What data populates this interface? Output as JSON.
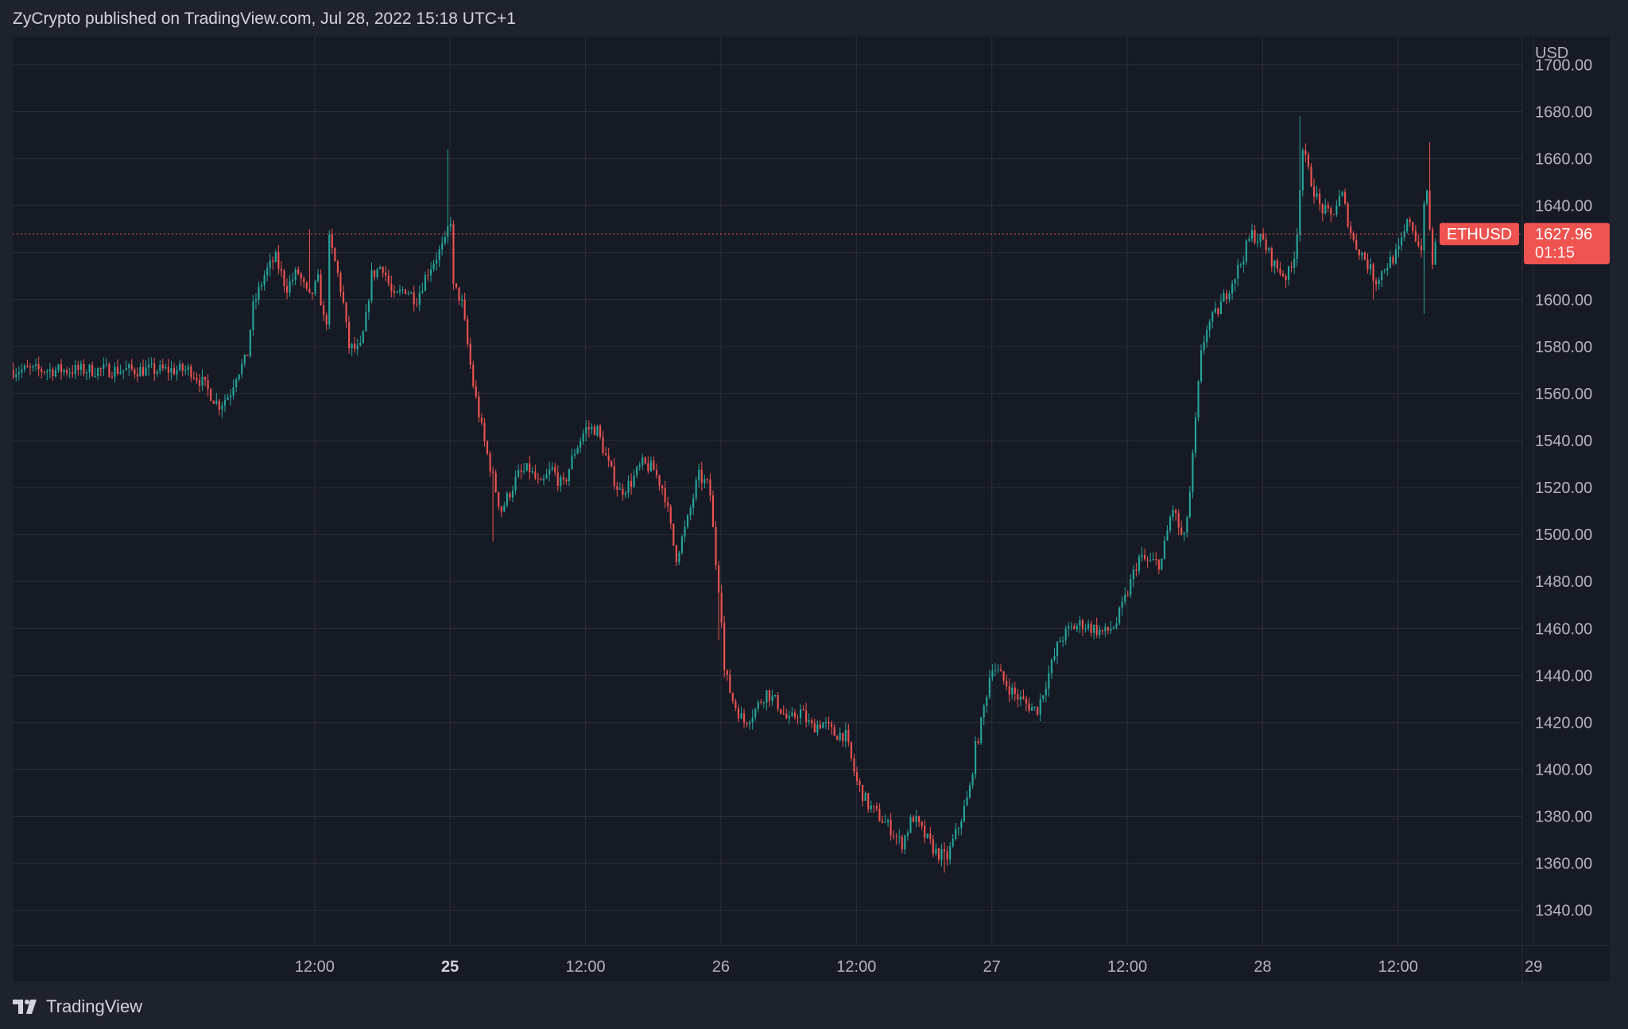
{
  "header": {
    "publisher_line": "ZyCrypto published on TradingView.com, Jul 28, 2022 15:18 UTC+1"
  },
  "footer": {
    "brand": "TradingView"
  },
  "colors": {
    "background": "#1e222d",
    "plot_background": "#161a25",
    "grid": "#2a2e39",
    "up": "#26a69a",
    "down": "#ef5350",
    "axis_text": "#b2b5be",
    "price_tag": "#ef5350"
  },
  "chart_data": {
    "type": "candlestick",
    "symbol": "ETHUSD",
    "currency_label": "USD",
    "last_price": "1627.96",
    "countdown": "01:15",
    "ylim": [
      1325,
      1712
    ],
    "y_ticks": [
      1340,
      1360,
      1380,
      1400,
      1420,
      1440,
      1460,
      1480,
      1500,
      1520,
      1540,
      1560,
      1580,
      1600,
      1620,
      1640,
      1660,
      1680,
      1700
    ],
    "y_tick_labels": [
      "1340.00",
      "1360.00",
      "1380.00",
      "1400.00",
      "1420.00",
      "1440.00",
      "1460.00",
      "1480.00",
      "1500.00",
      "1520.00",
      "1540.00",
      "1560.00",
      "1580.00",
      "1600.00",
      "1620.00",
      "1640.00",
      "1660.00",
      "1680.00",
      "1700.00"
    ],
    "x_range_hours": [
      -14.75,
      119
    ],
    "x_ticks": [
      {
        "hours": 12,
        "label": "12:00",
        "bold": false
      },
      {
        "hours": 24,
        "label": "25",
        "bold": true
      },
      {
        "hours": 36,
        "label": "12:00",
        "bold": false
      },
      {
        "hours": 48,
        "label": "26",
        "bold": false
      },
      {
        "hours": 60,
        "label": "12:00",
        "bold": false
      },
      {
        "hours": 72,
        "label": "27",
        "bold": false
      },
      {
        "hours": 84,
        "label": "12:00",
        "bold": false
      },
      {
        "hours": 96,
        "label": "28",
        "bold": false
      },
      {
        "hours": 108,
        "label": "12:00",
        "bold": false
      },
      {
        "hours": 120,
        "label": "29",
        "bold": false
      }
    ],
    "price_path": [
      [
        1.0,
        1570
      ],
      [
        2.0,
        1565
      ],
      [
        3.5,
        1555
      ],
      [
        4.5,
        1560
      ],
      [
        5.0,
        1568
      ],
      [
        6.0,
        1575
      ],
      [
        6.5,
        1596
      ],
      [
        7.5,
        1610
      ],
      [
        8.5,
        1618
      ],
      [
        9.5,
        1605
      ],
      [
        10.5,
        1612
      ],
      [
        11.5,
        1600
      ],
      [
        12.3,
        1608
      ],
      [
        13.0,
        1585
      ],
      [
        13.3,
        1625
      ],
      [
        14.0,
        1612
      ],
      [
        14.5,
        1600
      ],
      [
        15.0,
        1580
      ],
      [
        16.0,
        1578
      ],
      [
        16.5,
        1590
      ],
      [
        17.0,
        1610
      ],
      [
        18.0,
        1615
      ],
      [
        19.0,
        1600
      ],
      [
        20.0,
        1605
      ],
      [
        21.0,
        1600
      ],
      [
        22.0,
        1612
      ],
      [
        23.0,
        1620
      ],
      [
        23.7,
        1625
      ],
      [
        24.0,
        1640
      ],
      [
        24.3,
        1605
      ],
      [
        25.0,
        1600
      ],
      [
        26.0,
        1565
      ],
      [
        27.0,
        1540
      ],
      [
        28.0,
        1520
      ],
      [
        28.5,
        1510
      ],
      [
        29.0,
        1515
      ],
      [
        30.0,
        1525
      ],
      [
        31.0,
        1528
      ],
      [
        32.0,
        1520
      ],
      [
        33.0,
        1528
      ],
      [
        34.0,
        1520
      ],
      [
        35.0,
        1535
      ],
      [
        36.0,
        1545
      ],
      [
        37.0,
        1545
      ],
      [
        38.0,
        1530
      ],
      [
        39.0,
        1518
      ],
      [
        40.0,
        1522
      ],
      [
        41.0,
        1530
      ],
      [
        42.0,
        1528
      ],
      [
        43.0,
        1518
      ],
      [
        44.0,
        1490
      ],
      [
        45.0,
        1505
      ],
      [
        46.0,
        1525
      ],
      [
        47.0,
        1520
      ],
      [
        47.5,
        1490
      ],
      [
        48.0,
        1470
      ],
      [
        48.3,
        1442
      ],
      [
        49.0,
        1430
      ],
      [
        50.0,
        1420
      ],
      [
        51.0,
        1425
      ],
      [
        52.0,
        1433
      ],
      [
        53.0,
        1428
      ],
      [
        54.0,
        1420
      ],
      [
        55.0,
        1425
      ],
      [
        56.0,
        1418
      ],
      [
        57.0,
        1420
      ],
      [
        58.0,
        1415
      ],
      [
        59.0,
        1415
      ],
      [
        60.0,
        1395
      ],
      [
        61.0,
        1385
      ],
      [
        62.0,
        1380
      ],
      [
        63.0,
        1375
      ],
      [
        64.0,
        1368
      ],
      [
        65.0,
        1380
      ],
      [
        66.0,
        1372
      ],
      [
        67.0,
        1365
      ],
      [
        68.0,
        1362
      ],
      [
        69.0,
        1375
      ],
      [
        70.0,
        1390
      ],
      [
        70.5,
        1408
      ],
      [
        71.0,
        1418
      ],
      [
        72.0,
        1445
      ],
      [
        73.0,
        1438
      ],
      [
        74.0,
        1432
      ],
      [
        75.0,
        1428
      ],
      [
        76.0,
        1425
      ],
      [
        77.0,
        1440
      ],
      [
        78.0,
        1455
      ],
      [
        79.0,
        1460
      ],
      [
        80.0,
        1462
      ],
      [
        81.0,
        1460
      ],
      [
        82.0,
        1458
      ],
      [
        83.0,
        1462
      ],
      [
        84.0,
        1475
      ],
      [
        85.0,
        1490
      ],
      [
        86.0,
        1488
      ],
      [
        87.0,
        1488
      ],
      [
        88.0,
        1512
      ],
      [
        89.0,
        1496
      ],
      [
        89.6,
        1520
      ],
      [
        90.0,
        1545
      ],
      [
        90.5,
        1575
      ],
      [
        91.0,
        1588
      ],
      [
        92.0,
        1595
      ],
      [
        93.0,
        1605
      ],
      [
        94.0,
        1615
      ],
      [
        95.0,
        1628
      ],
      [
        96.0,
        1625
      ],
      [
        97.0,
        1615
      ],
      [
        98.0,
        1610
      ],
      [
        98.5,
        1612
      ],
      [
        99.0,
        1625
      ],
      [
        99.5,
        1665
      ],
      [
        100.0,
        1655
      ],
      [
        101.0,
        1640
      ],
      [
        102.0,
        1635
      ],
      [
        103.0,
        1645
      ],
      [
        104.0,
        1625
      ],
      [
        105.0,
        1618
      ],
      [
        106.0,
        1608
      ],
      [
        107.0,
        1615
      ],
      [
        108.0,
        1620
      ],
      [
        109.0,
        1635
      ],
      [
        110.0,
        1620
      ],
      [
        110.5,
        1650
      ],
      [
        111.0,
        1615
      ],
      [
        111.5,
        1627.96
      ]
    ],
    "extremes": [
      {
        "hours": 11.5,
        "high": 1630
      },
      {
        "hours": 23.8,
        "high": 1664
      },
      {
        "hours": 27.8,
        "low": 1497
      },
      {
        "hours": 47.8,
        "low": 1455
      },
      {
        "hours": 67.8,
        "low": 1356
      },
      {
        "hours": 99.3,
        "high": 1678
      },
      {
        "hours": 105.7,
        "low": 1600
      },
      {
        "hours": 110.3,
        "low": 1594
      },
      {
        "hours": 110.7,
        "high": 1667
      }
    ]
  }
}
